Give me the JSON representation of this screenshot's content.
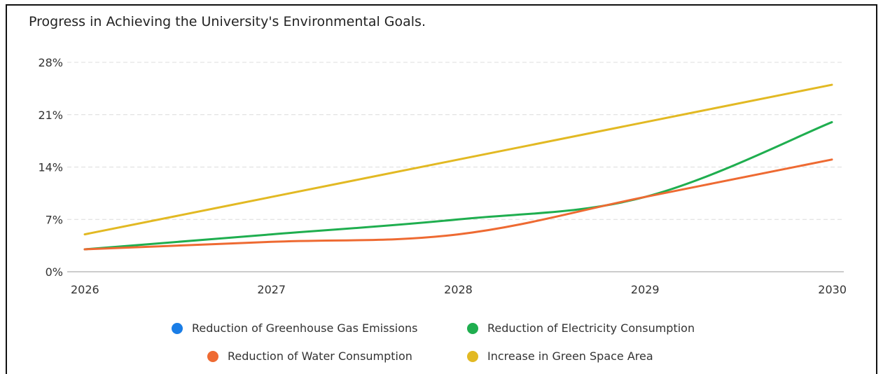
{
  "chart_data": {
    "type": "line",
    "title": "Progress in Achieving the University's Environmental Goals.",
    "x": [
      "2026",
      "2027",
      "2028",
      "2029",
      "2030"
    ],
    "ylim": [
      0,
      28
    ],
    "yticks": [
      0,
      7,
      14,
      21,
      28
    ],
    "ytick_labels": [
      "0%",
      "7%",
      "14%",
      "21%",
      "28%"
    ],
    "grid": true,
    "legend_position": "bottom",
    "series": [
      {
        "name": "Reduction of Greenhouse Gas Emissions",
        "color": "#1a7de6",
        "values": [
          null,
          null,
          null,
          null,
          null
        ]
      },
      {
        "name": "Reduction of Electricity Consumption",
        "color": "#1fae4f",
        "values": [
          3,
          5,
          7,
          10,
          20
        ]
      },
      {
        "name": "Reduction of Water Consumption",
        "color": "#ee6a32",
        "values": [
          3,
          4,
          5,
          10,
          15
        ]
      },
      {
        "name": "Increase in Green Space Area",
        "color": "#e2b923",
        "values": [
          5,
          10,
          15,
          20,
          25
        ]
      }
    ]
  }
}
